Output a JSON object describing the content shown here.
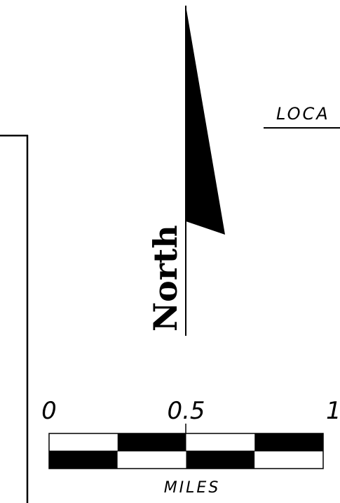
{
  "north_arrow": {
    "label": "North"
  },
  "location_label": "LOCA",
  "scale_bar": {
    "tick_labels": [
      "0",
      "0.5",
      "1"
    ],
    "tick_values": [
      0,
      0.5,
      1
    ],
    "units": "MILES",
    "segments_per_unit": 4
  },
  "colors": {
    "ink": "#000000",
    "paper": "#ffffff"
  }
}
